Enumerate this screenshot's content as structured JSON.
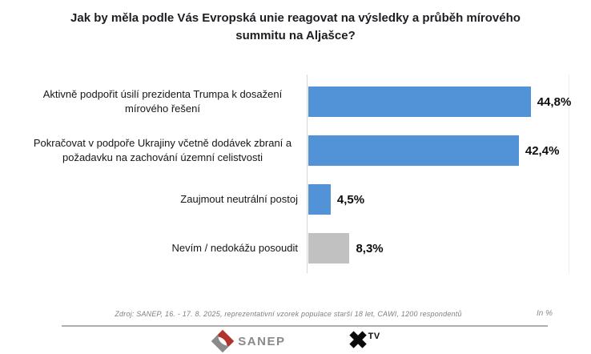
{
  "title": "Jak by měla podle Vás Evropská unie reagovat na výsledky a průběh mírového summitu na Aljašce?",
  "chart_data": {
    "type": "bar",
    "orientation": "horizontal",
    "title": "Jak by měla podle Vás Evropská unie reagovat na výsledky a průběh mírového summitu na Aljašce?",
    "categories": [
      "Aktivně podpořit úsilí prezidenta Trumpa k dosažení mírového řešení",
      "Pokračovat v podpoře Ukrajiny včetně dodávek zbraní a požadavku na zachování územní celistvosti",
      "Zaujmout neutrální postoj",
      "Nevím / nedokážu posoudit"
    ],
    "values": [
      44.8,
      42.4,
      4.5,
      8.3
    ],
    "value_labels": [
      "44,8%",
      "42,4%",
      "4,5%",
      "8,3%"
    ],
    "bar_colors": [
      "#5193d6",
      "#5193d6",
      "#5193d6",
      "#c1c1c1"
    ],
    "unit": "%",
    "xlim": [
      0,
      50
    ],
    "grid": false,
    "legend": "none"
  },
  "footer": {
    "source_note": "Zdroj: SANEP, 16. - 17. 8. 2025, reprezentativní vzorek populace starší 18 let, CAWI, 1200 respondentů",
    "unit_note": "In %",
    "sanep_label": "SANEP",
    "tv_x_glyph": "✖",
    "tv_label": "TV"
  },
  "colors": {
    "bar_blue": "#5193d6",
    "bar_gray": "#c1c1c1",
    "axis_line": "#d6d6d6",
    "footer_rule": "#aeaeae",
    "sanep_red": "#b2332e",
    "sanep_gray": "#8a8a8a"
  }
}
